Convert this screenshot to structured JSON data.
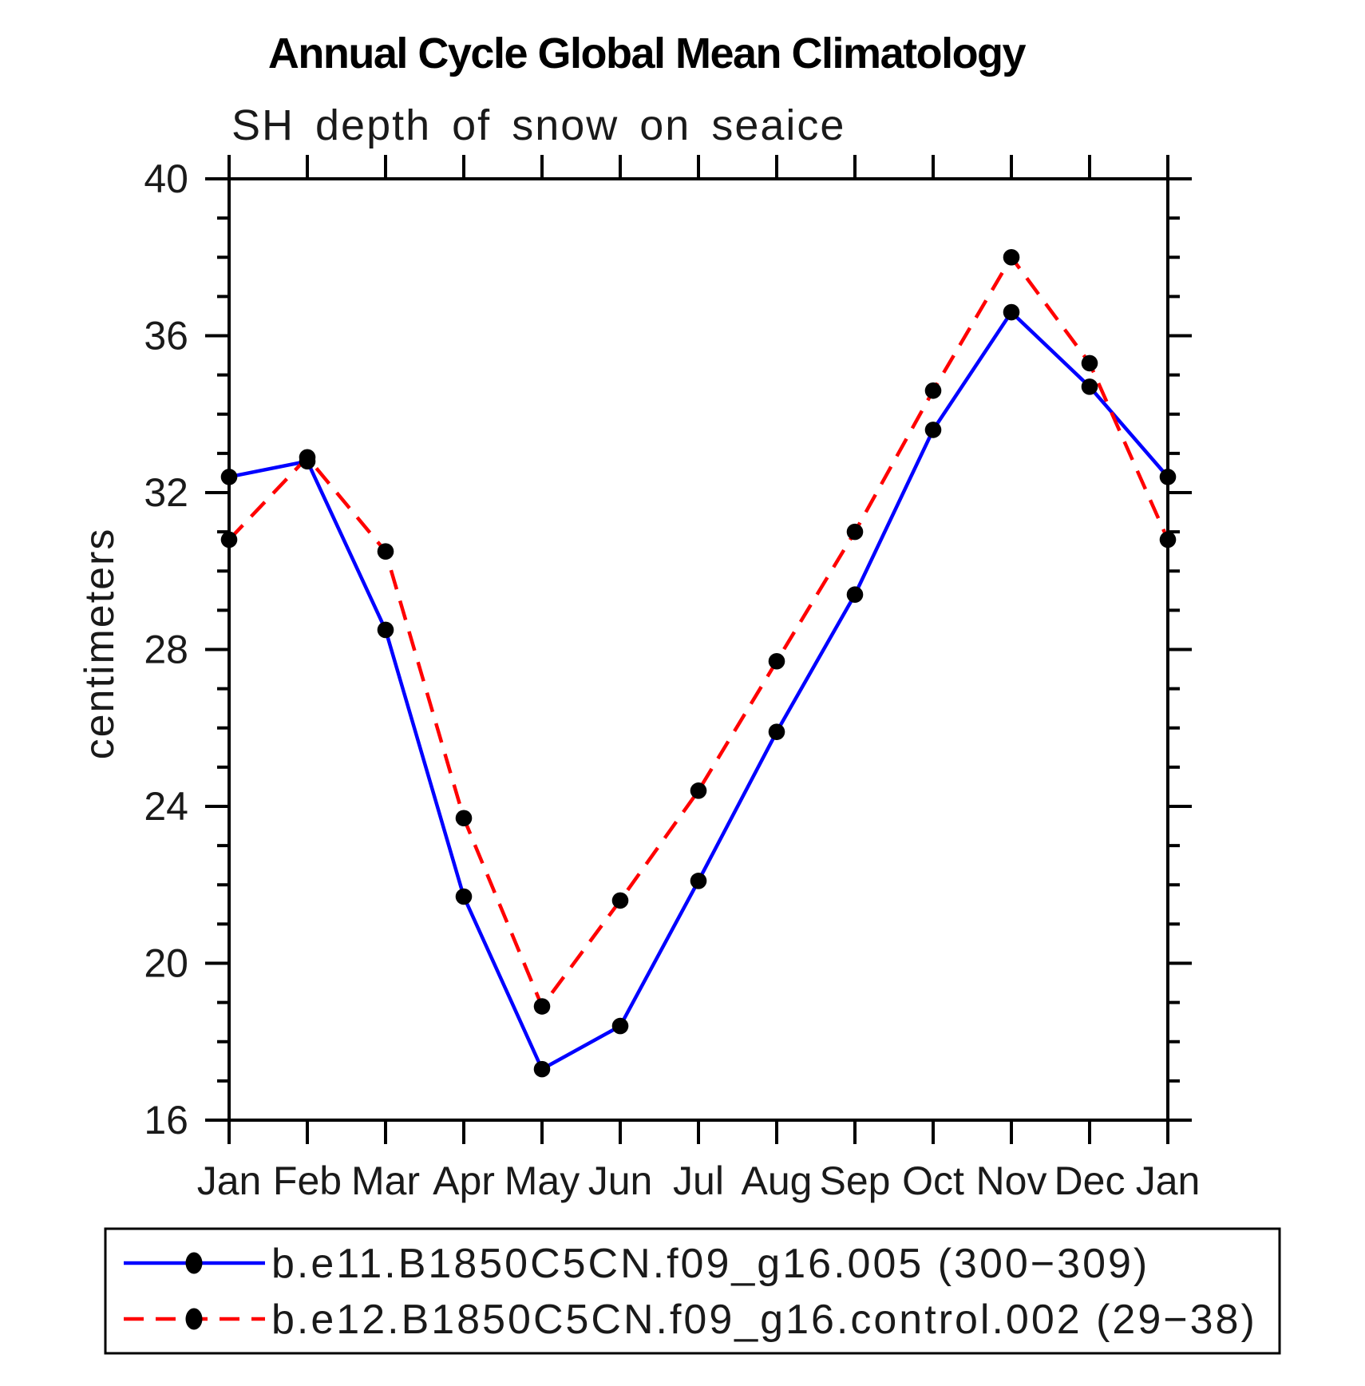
{
  "page": {
    "title": "Annual Cycle Global Mean Climatology",
    "subtitle": "SH depth of snow on seaice",
    "ylabel": "centimeters"
  },
  "chart_data": {
    "type": "line",
    "title": "Annual Cycle Global Mean Climatology",
    "subtitle": "SH depth of snow on seaice",
    "xlabel": "",
    "ylabel": "centimeters",
    "categories": [
      "Jan",
      "Feb",
      "Mar",
      "Apr",
      "May",
      "Jun",
      "Jul",
      "Aug",
      "Sep",
      "Oct",
      "Nov",
      "Dec",
      "Jan"
    ],
    "ylim": [
      16,
      40
    ],
    "ytick_major": [
      16,
      20,
      24,
      28,
      32,
      36,
      40
    ],
    "ytick_minor_step": 1,
    "grid": false,
    "legend_position": "bottom-left-box",
    "marker": {
      "shape": "filled-circle",
      "color": "#000000"
    },
    "series": [
      {
        "name": "b.e11.B1850C5CN.f09_g16.005 (300−309)",
        "color": "#0000ff",
        "line_style": "solid",
        "values": [
          32.4,
          32.8,
          28.5,
          21.7,
          17.3,
          18.4,
          22.1,
          25.9,
          29.4,
          33.6,
          36.6,
          34.7,
          32.4
        ]
      },
      {
        "name": "b.e12.B1850C5CN.f09_g16.control.002 (29−38)",
        "color": "#ff0000",
        "line_style": "dashed",
        "values": [
          30.8,
          32.9,
          30.5,
          23.7,
          18.9,
          21.6,
          24.4,
          27.7,
          31.0,
          34.6,
          38.0,
          35.3,
          30.8
        ]
      }
    ]
  }
}
